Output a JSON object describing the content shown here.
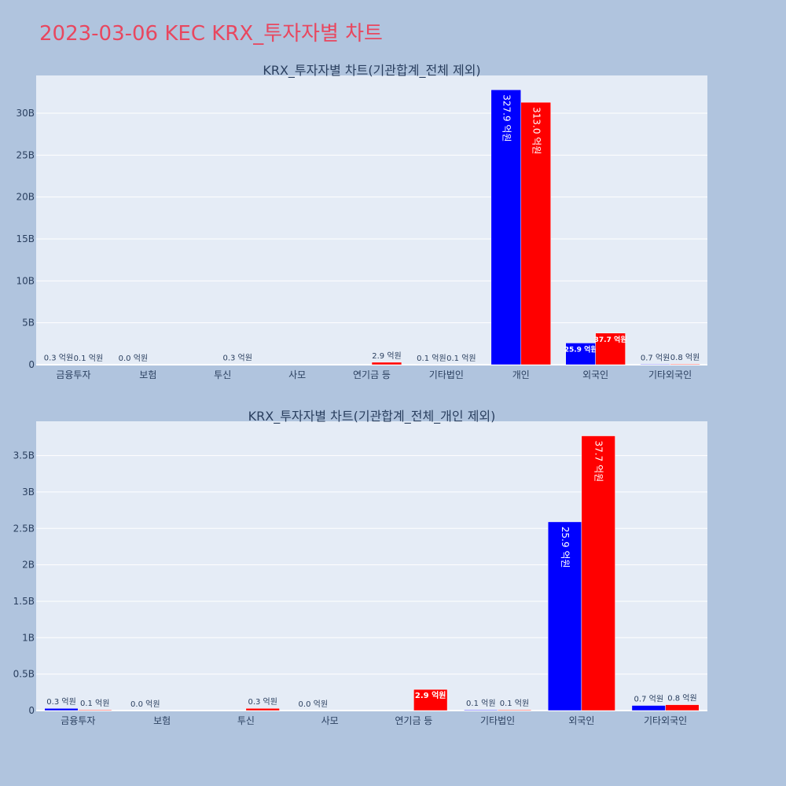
{
  "title": "2023-03-06 KEC KRX_투자자별 차트",
  "colors": {
    "background": "#b0c4de",
    "plot_bg": "#e5ecf6",
    "buy": "#0000ff",
    "sell": "#ff0000",
    "title": "#e8475f",
    "text": "#2a3f5f"
  },
  "chart_data": [
    {
      "type": "bar",
      "title": "KRX_투자자별 차트(기관합계_전체 제외)",
      "categories": [
        "금융투자",
        "보험",
        "투신",
        "사모",
        "연기금 등",
        "기타법인",
        "개인",
        "외국인",
        "기타외국인"
      ],
      "yticks": [
        "0",
        "5B",
        "10B",
        "15B",
        "20B",
        "25B",
        "30B"
      ],
      "ylim": [
        0,
        34500000000
      ],
      "grid": true,
      "series": [
        {
          "color": "#0000ff",
          "values": [
            30000000,
            0,
            null,
            null,
            null,
            10000000,
            32790000000,
            2590000000,
            70000000
          ],
          "labels": [
            "0.3 억원",
            "0.0 억원",
            "",
            "",
            "",
            "0.1 억원",
            "327.9 억원",
            "25.9 억원",
            "0.7 억원"
          ]
        },
        {
          "color": "#ff0000",
          "values": [
            10000000,
            null,
            30000000,
            null,
            290000000,
            10000000,
            31300000000,
            3770000000,
            80000000
          ],
          "labels": [
            "0.1 억원",
            "",
            "0.3 억원",
            "",
            "2.9 억원",
            "0.1 억원",
            "313.0 억원",
            "37.7 억원",
            "0.8 억원"
          ]
        }
      ]
    },
    {
      "type": "bar",
      "title": "KRX_투자자별 차트(기관합계_전체_개인 제외)",
      "categories": [
        "금융투자",
        "보험",
        "투신",
        "사모",
        "연기금 등",
        "기타법인",
        "외국인",
        "기타외국인"
      ],
      "yticks": [
        "0",
        "0.5B",
        "1B",
        "1.5B",
        "2B",
        "2.5B",
        "3B",
        "3.5B"
      ],
      "ylim": [
        0,
        3970000000
      ],
      "grid": true,
      "series": [
        {
          "color": "#0000ff",
          "values": [
            30000000,
            0,
            null,
            0,
            null,
            10000000,
            2590000000,
            70000000
          ],
          "labels": [
            "0.3 억원",
            "0.0 억원",
            "",
            "0.0 억원",
            "",
            "0.1 억원",
            "25.9 억원",
            "0.7 억원"
          ]
        },
        {
          "color": "#ff0000",
          "values": [
            10000000,
            null,
            30000000,
            null,
            290000000,
            10000000,
            3770000000,
            80000000
          ],
          "labels": [
            "0.1 억원",
            "",
            "0.3 억원",
            "",
            "2.9 억원",
            "0.1 억원",
            "37.7 억원",
            "0.8 억원"
          ]
        }
      ]
    }
  ]
}
